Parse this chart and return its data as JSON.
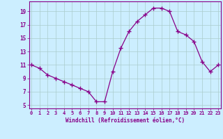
{
  "x": [
    0,
    1,
    2,
    3,
    4,
    5,
    6,
    7,
    8,
    9,
    10,
    11,
    12,
    13,
    14,
    15,
    16,
    17,
    18,
    19,
    20,
    21,
    22,
    23
  ],
  "y": [
    11,
    10.5,
    9.5,
    9,
    8.5,
    8,
    7.5,
    7,
    5.5,
    5.5,
    10,
    13.5,
    16,
    17.5,
    18.5,
    19.5,
    19.5,
    19,
    16,
    15.5,
    14.5,
    11.5,
    10,
    11
  ],
  "line_color": "#880088",
  "marker_color": "#880088",
  "bg_color": "#cceeff",
  "grid_color": "#aacccc",
  "axis_color": "#880088",
  "tick_color": "#880088",
  "xlabel": "Windchill (Refroidissement éolien,°C)",
  "xticks": [
    0,
    1,
    2,
    3,
    4,
    5,
    6,
    7,
    8,
    9,
    10,
    11,
    12,
    13,
    14,
    15,
    16,
    17,
    18,
    19,
    20,
    21,
    22,
    23
  ],
  "yticks": [
    5,
    7,
    9,
    11,
    13,
    15,
    17,
    19
  ],
  "xlim": [
    -0.3,
    23.3
  ],
  "ylim": [
    4.5,
    20.5
  ]
}
